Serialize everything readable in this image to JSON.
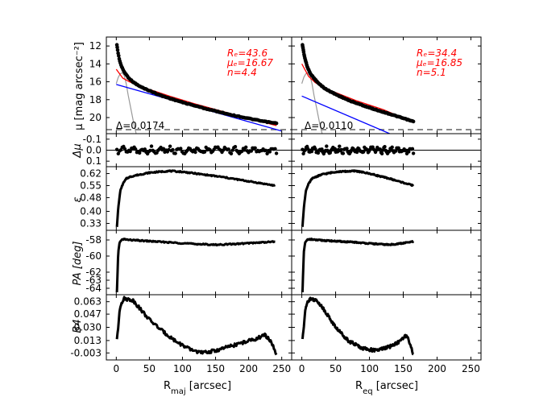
{
  "figure": {
    "xlabels": {
      "left": "R",
      "left_sub": "maj",
      "left_unit": " [arcsec]",
      "right": "R",
      "right_sub": "eq",
      "right_unit": " [arcsec]"
    },
    "xticks": [
      0,
      50,
      100,
      150,
      200,
      250
    ],
    "xlim": [
      -15,
      265
    ]
  },
  "colors": {
    "data": "#000000",
    "fit_red": "#ff0000",
    "fit_blue": "#0000ff",
    "psf_gray": "#999999",
    "dashed": "#888888"
  },
  "chart_data": [
    {
      "type": "line",
      "panel": "surface-brightness",
      "ylabel": "μ [mag arcsec⁻²]",
      "ylim": [
        11,
        21.8
      ],
      "yticks": [
        12,
        14,
        16,
        18,
        20
      ],
      "inverted": true,
      "left": {
        "xmax": 242,
        "profile": {
          "x": [
            1,
            3,
            5,
            8,
            12,
            18,
            25,
            35,
            50,
            70,
            100,
            140,
            180,
            220,
            242
          ],
          "y": [
            11.9,
            12.9,
            13.6,
            14.3,
            14.9,
            15.5,
            16.0,
            16.5,
            17.0,
            17.6,
            18.3,
            19.1,
            19.8,
            20.4,
            20.65
          ]
        },
        "fit_red": {
          "x": [
            0,
            10,
            20,
            40,
            80,
            120,
            160,
            200,
            242
          ],
          "y": [
            14.6,
            15.6,
            16.0,
            16.6,
            17.6,
            18.5,
            19.3,
            20.1,
            20.9
          ]
        },
        "fit_blue": {
          "x": [
            0,
            250
          ],
          "y": [
            16.3,
            21.5
          ]
        },
        "psf": {
          "x": [
            0,
            3,
            6,
            9,
            12,
            15,
            18,
            22,
            26,
            30
          ],
          "y": [
            16.2,
            15.5,
            15.1,
            15.0,
            15.3,
            16.2,
            17.5,
            19.0,
            20.5,
            21.8
          ]
        },
        "dashed_y": 21.35,
        "annotation": {
          "lines": [
            "Rₑ=43.6",
            "μₑ=16.67",
            "n=4.4"
          ]
        },
        "delta": "Δ=0.0174"
      },
      "right": {
        "xmax": 165,
        "profile": {
          "x": [
            1,
            3,
            5,
            8,
            12,
            18,
            25,
            35,
            50,
            70,
            100,
            130,
            165
          ],
          "y": [
            11.9,
            12.8,
            13.5,
            14.3,
            15.0,
            15.6,
            16.2,
            16.8,
            17.4,
            18.1,
            18.9,
            19.6,
            20.45
          ]
        },
        "fit_red": {
          "x": [
            0,
            10,
            20,
            40,
            80,
            120,
            165
          ],
          "y": [
            14.0,
            15.4,
            16.1,
            16.9,
            18.1,
            19.1,
            20.5
          ]
        },
        "fit_blue": {
          "x": [
            0,
            130
          ],
          "y": [
            17.6,
            21.8
          ]
        },
        "psf": {
          "x": [
            0,
            3,
            6,
            9,
            12,
            15,
            18,
            22,
            26,
            30
          ],
          "y": [
            16.2,
            15.5,
            15.1,
            15.0,
            15.3,
            16.2,
            17.5,
            19.0,
            20.5,
            21.8
          ]
        },
        "dashed_y": 21.35,
        "annotation": {
          "lines": [
            "Rₑ=34.4",
            "μₑ=16.85",
            "n=5.1"
          ]
        },
        "delta": "Δ=0.0110"
      }
    },
    {
      "type": "scatter",
      "panel": "residuals",
      "ylabel": "Δμ",
      "ylim": [
        -0.15,
        0.15
      ],
      "yticks": [
        -0.1,
        0.0,
        0.1
      ],
      "ytick_labels": [
        "-0.1",
        "0.0",
        "0.1"
      ],
      "inverted": true,
      "left": {
        "xmax": 242,
        "amplitude": 0.03
      },
      "right": {
        "xmax": 165,
        "amplitude": 0.03
      }
    },
    {
      "type": "line",
      "panel": "ellipticity",
      "ylabel": "ε",
      "ylim": [
        0.29,
        0.66
      ],
      "yticks": [
        0.33,
        0.4,
        0.48,
        0.55,
        0.62
      ],
      "ytick_labels": [
        "0.33",
        "0.40",
        "0.48",
        "0.55",
        "0.62"
      ],
      "left": {
        "x": [
          1,
          3,
          6,
          10,
          15,
          20,
          30,
          50,
          80,
          100,
          130,
          160,
          200,
          240
        ],
        "y": [
          0.31,
          0.42,
          0.52,
          0.56,
          0.59,
          0.6,
          0.61,
          0.625,
          0.635,
          0.63,
          0.615,
          0.6,
          0.575,
          0.55
        ]
      },
      "right": {
        "x": [
          1,
          3,
          6,
          10,
          15,
          20,
          30,
          50,
          80,
          100,
          130,
          165
        ],
        "y": [
          0.31,
          0.42,
          0.52,
          0.56,
          0.59,
          0.6,
          0.615,
          0.63,
          0.635,
          0.62,
          0.59,
          0.55
        ]
      }
    },
    {
      "type": "line",
      "panel": "position-angle",
      "ylabel": "PA [deg]",
      "ylim": [
        -64.8,
        -56.8
      ],
      "yticks": [
        -58,
        -60,
        -62,
        -63,
        -64
      ],
      "ytick_labels": [
        "-58",
        "-60",
        "-62",
        "-63",
        "-64"
      ],
      "left": {
        "x": [
          1,
          2,
          3,
          5,
          8,
          12,
          20,
          40,
          80,
          120,
          150,
          180,
          200,
          220,
          240
        ],
        "y": [
          -64.5,
          -62.0,
          -59.5,
          -58.3,
          -58.0,
          -57.9,
          -58.0,
          -58.1,
          -58.3,
          -58.5,
          -58.6,
          -58.5,
          -58.4,
          -58.3,
          -58.2
        ]
      },
      "right": {
        "x": [
          1,
          2,
          3,
          5,
          8,
          12,
          20,
          40,
          80,
          110,
          130,
          150,
          165
        ],
        "y": [
          -64.5,
          -62.0,
          -59.5,
          -58.3,
          -58.0,
          -57.9,
          -58.0,
          -58.1,
          -58.3,
          -58.5,
          -58.6,
          -58.4,
          -58.2
        ]
      }
    },
    {
      "type": "line",
      "panel": "b4",
      "ylabel": "B4",
      "ylim": [
        -0.012,
        0.072
      ],
      "yticks": [
        0.063,
        0.047,
        0.03,
        0.013,
        -0.003
      ],
      "ytick_labels": [
        "0.063",
        "0.047",
        "0.030",
        "0.013",
        "-0.003"
      ],
      "left": {
        "x": [
          1,
          3,
          5,
          8,
          12,
          18,
          25,
          35,
          50,
          70,
          90,
          110,
          130,
          150,
          170,
          190,
          210,
          225,
          235,
          242
        ],
        "y": [
          0.015,
          0.03,
          0.052,
          0.062,
          0.067,
          0.066,
          0.065,
          0.055,
          0.04,
          0.025,
          0.012,
          0.002,
          -0.003,
          0.0,
          0.005,
          0.01,
          0.015,
          0.02,
          0.01,
          -0.005
        ]
      },
      "right": {
        "x": [
          1,
          3,
          5,
          8,
          12,
          18,
          25,
          35,
          50,
          70,
          90,
          110,
          130,
          145,
          155,
          165
        ],
        "y": [
          0.015,
          0.03,
          0.052,
          0.062,
          0.067,
          0.066,
          0.062,
          0.05,
          0.03,
          0.012,
          0.003,
          0.0,
          0.005,
          0.012,
          0.02,
          -0.005
        ]
      }
    }
  ]
}
